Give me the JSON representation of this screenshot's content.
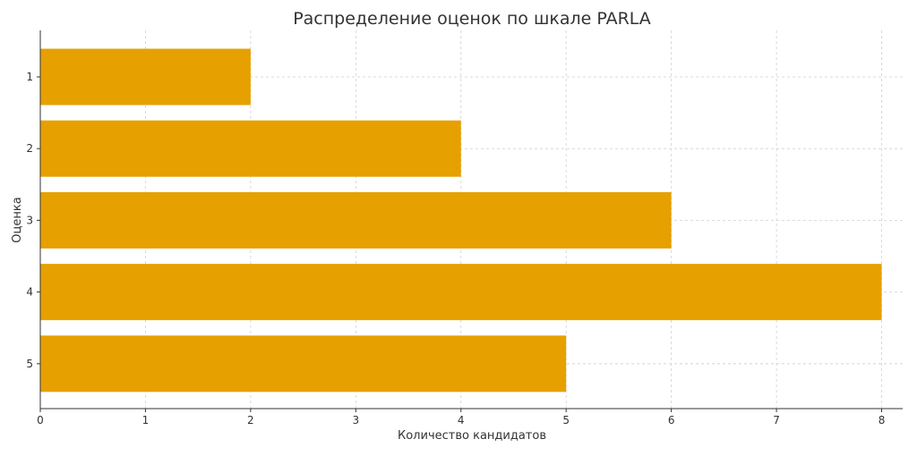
{
  "chart_data": {
    "type": "bar",
    "orientation": "horizontal",
    "title": "Распределение оценок по шкале PARLA",
    "xlabel": "Количество кандидатов",
    "ylabel": "Оценка",
    "categories": [
      "1",
      "2",
      "3",
      "4",
      "5"
    ],
    "values": [
      2,
      4,
      6,
      8,
      5
    ],
    "xlim": [
      0,
      8.2
    ],
    "x_ticks": [
      "0",
      "1",
      "2",
      "3",
      "4",
      "5",
      "6",
      "7",
      "8"
    ],
    "grid": true,
    "bar_color": "#E6A000",
    "grid_color": "#D0D0D0"
  }
}
